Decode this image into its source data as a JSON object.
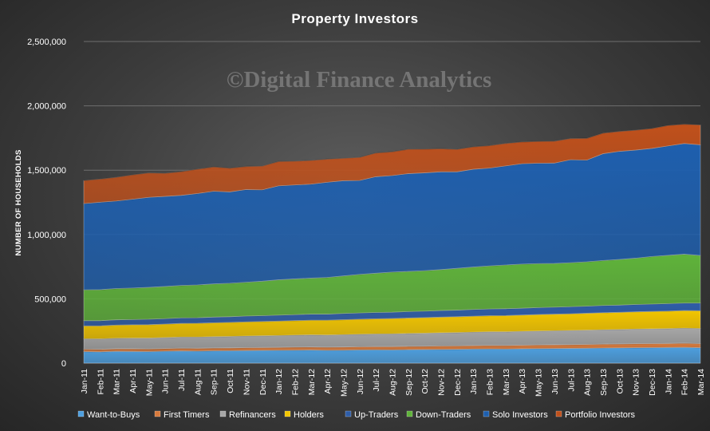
{
  "chart_data": {
    "type": "area",
    "title": "Property  Investors",
    "watermark": "©Digital Finance Analytics",
    "xlabel": "",
    "ylabel": "NUMBER OF HOUSEHOLDS",
    "ylim": [
      0,
      2500000
    ],
    "yticks": [
      "0",
      "500,000",
      "1,000,000",
      "1,500,000",
      "2,000,000",
      "2,500,000"
    ],
    "ytick_values": [
      0,
      500000,
      1000000,
      1500000,
      2000000,
      2500000
    ],
    "stacked": true,
    "legend_position": "bottom",
    "categories": [
      "Jan-11",
      "Feb-11",
      "Mar-11",
      "Apr-11",
      "May-11",
      "Jun-11",
      "Jul-11",
      "Aug-11",
      "Sep-11",
      "Oct-11",
      "Nov-11",
      "Dec-11",
      "Jan-12",
      "Feb-12",
      "Mar-12",
      "Apr-12",
      "May-12",
      "Jun-12",
      "Jul-12",
      "Aug-12",
      "Sep-12",
      "Oct-12",
      "Nov-12",
      "Dec-12",
      "Jan-13",
      "Feb-13",
      "Mar-13",
      "Apr-13",
      "May-13",
      "Jun-13",
      "Jul-13",
      "Aug-13",
      "Sep-13",
      "Oct-13",
      "Nov-13",
      "Dec-13",
      "Jan-14",
      "Feb-14",
      "Mar-14"
    ],
    "series": [
      {
        "name": "Want-to-Buys",
        "color": "#4d9fdf",
        "values": [
          90000,
          88000,
          92000,
          91000,
          90000,
          93000,
          95000,
          94000,
          96000,
          97000,
          98000,
          99000,
          100000,
          101000,
          102000,
          100000,
          101000,
          103000,
          104000,
          103000,
          105000,
          106000,
          107000,
          108000,
          110000,
          111000,
          110000,
          112000,
          113000,
          114000,
          115000,
          116000,
          118000,
          119000,
          120000,
          121000,
          122000,
          123000,
          120000
        ]
      },
      {
        "name": "First Timers",
        "color": "#d77a3c",
        "values": [
          20000,
          20000,
          20000,
          21000,
          21000,
          21000,
          22000,
          22000,
          22000,
          22000,
          23000,
          23000,
          23000,
          24000,
          24000,
          24000,
          25000,
          25000,
          25000,
          26000,
          26000,
          26000,
          27000,
          27000,
          27000,
          28000,
          28000,
          28000,
          29000,
          29000,
          29000,
          30000,
          30000,
          30000,
          31000,
          31000,
          31000,
          32000,
          32000
        ]
      },
      {
        "name": "Refinancers",
        "color": "#a6a6a6",
        "values": [
          80000,
          81000,
          82000,
          83000,
          84000,
          85000,
          86000,
          87000,
          88000,
          89000,
          90000,
          91000,
          92000,
          93000,
          94000,
          95000,
          96000,
          97000,
          98000,
          99000,
          100000,
          101000,
          102000,
          103000,
          104000,
          105000,
          106000,
          107000,
          108000,
          109000,
          110000,
          111000,
          112000,
          113000,
          114000,
          115000,
          116000,
          117000,
          118000
        ]
      },
      {
        "name": "Holders",
        "color": "#f2c500",
        "values": [
          100000,
          101000,
          102000,
          103000,
          104000,
          105000,
          106000,
          107000,
          108000,
          109000,
          110000,
          111000,
          112000,
          113000,
          114000,
          115000,
          116000,
          117000,
          118000,
          119000,
          120000,
          121000,
          122000,
          123000,
          124000,
          125000,
          126000,
          127000,
          128000,
          129000,
          130000,
          131000,
          132000,
          133000,
          134000,
          135000,
          136000,
          137000,
          138000
        ]
      },
      {
        "name": "Up-Traders",
        "color": "#2e5da8",
        "values": [
          40000,
          40000,
          41000,
          41000,
          42000,
          42000,
          43000,
          43000,
          44000,
          44000,
          45000,
          45000,
          46000,
          46000,
          47000,
          47000,
          48000,
          48000,
          49000,
          49000,
          50000,
          50000,
          51000,
          51000,
          52000,
          52000,
          53000,
          53000,
          54000,
          54000,
          55000,
          55000,
          56000,
          56000,
          57000,
          57000,
          58000,
          58000,
          59000
        ]
      },
      {
        "name": "Down-Traders",
        "color": "#5fb33a",
        "values": [
          240000,
          241000,
          243000,
          245000,
          248000,
          250000,
          252000,
          255000,
          258000,
          260000,
          263000,
          268000,
          275000,
          278000,
          280000,
          285000,
          292000,
          300000,
          305000,
          312000,
          312000,
          315000,
          318000,
          325000,
          330000,
          335000,
          340000,
          343000,
          342000,
          340000,
          342000,
          345000,
          350000,
          355000,
          360000,
          370000,
          375000,
          380000,
          370000
        ]
      },
      {
        "name": "Solo Investors",
        "color": "#1e5fae",
        "values": [
          670000,
          680000,
          680000,
          690000,
          700000,
          700000,
          700000,
          710000,
          720000,
          710000,
          720000,
          710000,
          730000,
          730000,
          730000,
          740000,
          740000,
          730000,
          750000,
          750000,
          760000,
          760000,
          760000,
          750000,
          760000,
          760000,
          770000,
          780000,
          780000,
          780000,
          800000,
          790000,
          830000,
          840000,
          840000,
          840000,
          850000,
          860000,
          860000
        ]
      },
      {
        "name": "Portfolio Investors",
        "color": "#c0501b",
        "values": [
          180000,
          180000,
          185000,
          190000,
          190000,
          180000,
          185000,
          190000,
          190000,
          185000,
          180000,
          185000,
          190000,
          185000,
          185000,
          180000,
          175000,
          180000,
          185000,
          185000,
          190000,
          185000,
          180000,
          175000,
          175000,
          175000,
          175000,
          170000,
          170000,
          170000,
          165000,
          170000,
          160000,
          155000,
          155000,
          155000,
          160000,
          150000,
          155000
        ]
      }
    ]
  }
}
